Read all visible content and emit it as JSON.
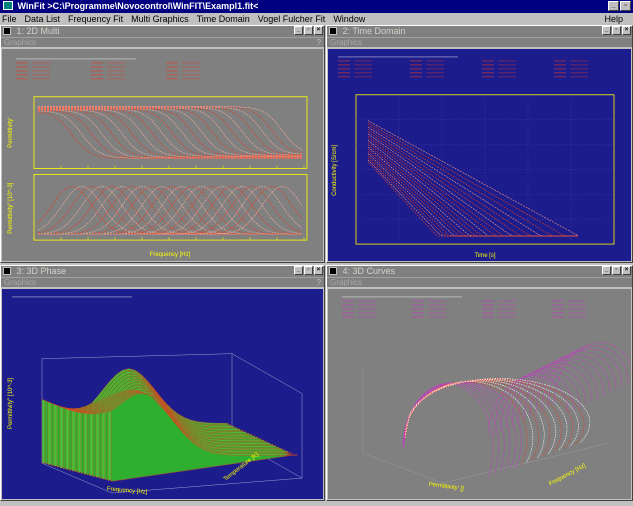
{
  "app": {
    "title": "WinFit >C:\\Programme\\Novocontrol\\WinFIT\\Exampl1.fit<",
    "menus": [
      "File",
      "Data List",
      "Frequency Fit",
      "Multi Graphics",
      "Time Domain",
      "Vogel Fulcher Fit",
      "Window"
    ],
    "help": "Help"
  },
  "windows": [
    {
      "title": "1: 2D Multi",
      "tab": "Graphics",
      "help_mark": "?"
    },
    {
      "title": "2: Time Domain",
      "tab": "Graphics",
      "help_mark": "?"
    },
    {
      "title": "3: 3D Phase",
      "tab": "Graphics",
      "help_mark": "?"
    },
    {
      "title": "4: 3D Curves",
      "tab": "Graphics",
      "help_mark": "?"
    }
  ],
  "window_controls": {
    "minimize": "_",
    "restore": "▫",
    "close": "×"
  },
  "colors": {
    "gray_plot": "#808080",
    "blue_plot": "#1c1c8c",
    "curve_red": "#e83a1e",
    "axis_yellow": "#ffff00",
    "surface_green": "#3cc83c",
    "curve_magenta": "#cc33cc"
  },
  "chart_data": [
    {
      "type": "line",
      "window": "1: 2D Multi",
      "subplots": [
        {
          "ylabel": "Permittivity'",
          "shape": "step-down"
        },
        {
          "ylabel": "Permittivity'' [10^-3]",
          "shape": "loss-peak"
        }
      ],
      "xlabel": "Frequency [Hz]",
      "xscale": "log",
      "grid": false
    },
    {
      "type": "line",
      "window": "2: Time Domain",
      "ylabel": "Conductivity [S/cm]",
      "xlabel": "Time [s]",
      "xscale": "log",
      "yscale": "log",
      "grid": true
    },
    {
      "type": "area",
      "window": "3: 3D Phase",
      "ylabel": "Permittivity'' [10^-3]",
      "xlabel": "Frequency [Hz]",
      "zlabel": "Temperature [K]"
    },
    {
      "type": "line",
      "window": "4: 3D Curves",
      "xlabel": "Permittivity' []",
      "zlabel": "Frequency [Hz]"
    }
  ]
}
